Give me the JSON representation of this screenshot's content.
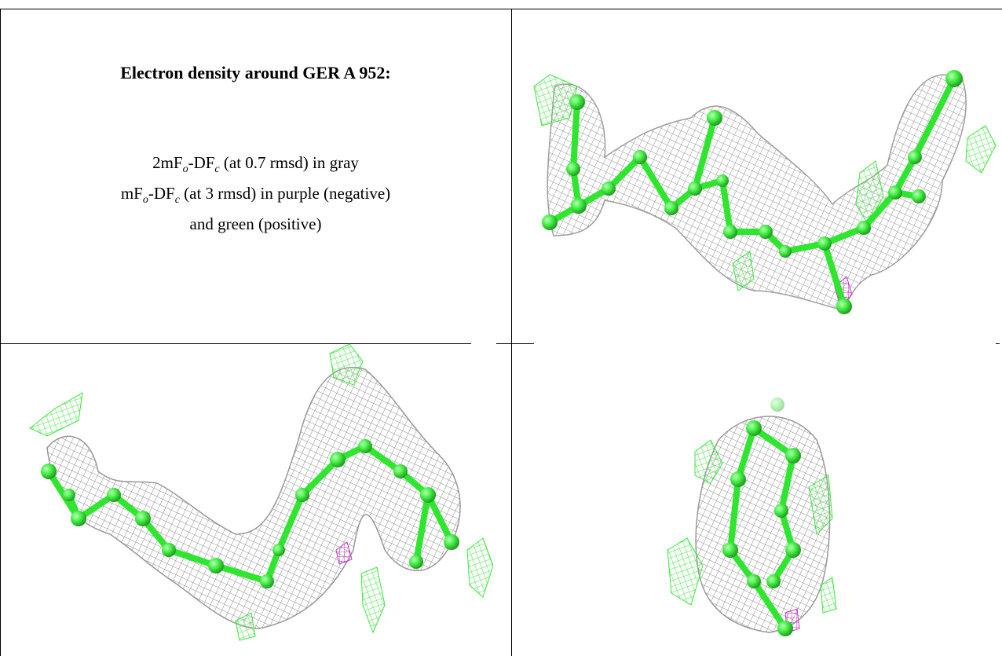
{
  "caption": {
    "title": "Electron density around GER A 952:",
    "lines": [
      [
        "2mF",
        "o",
        "-DF",
        "c",
        " (at 0.7 rmsd) in gray"
      ],
      [
        "mF",
        "o",
        "-DF",
        "c",
        " (at 3 rmsd) in purple (negative)"
      ],
      [
        "and green (positive)"
      ]
    ]
  }
}
